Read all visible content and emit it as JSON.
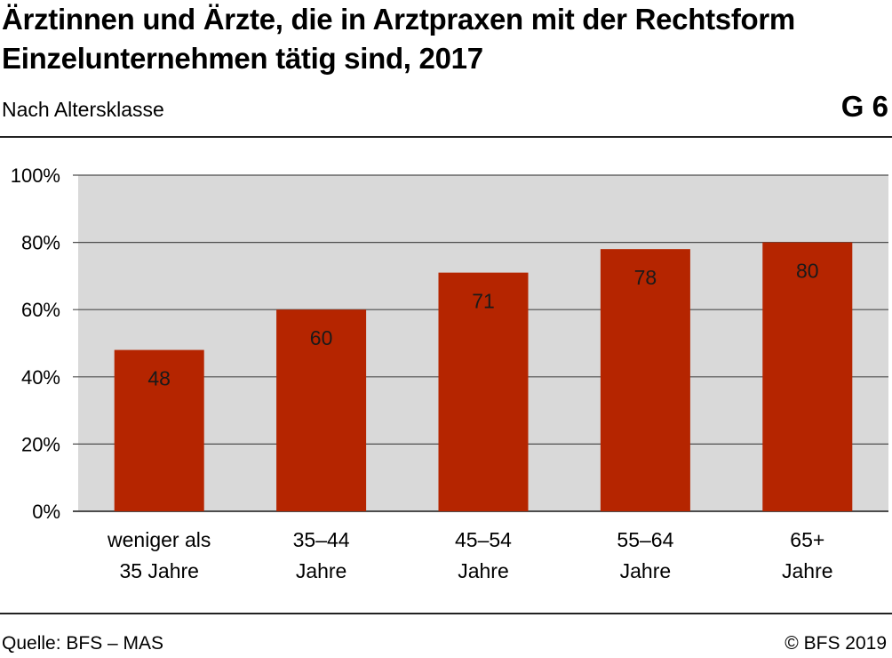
{
  "header": {
    "title": "Ärztinnen und Ärzte, die in Arztpraxen mit der Rechtsform Einzelunternehmen tätig sind, 2017",
    "subtitle": "Nach Altersklasse",
    "chart_id": "G 6"
  },
  "footer": {
    "source": "Quelle: BFS – MAS",
    "copyright": "© BFS 2019"
  },
  "colors": {
    "bar": "#b52500",
    "plot_background": "#d9d9d9",
    "grid": "#4d4d4d"
  },
  "chart_data": {
    "type": "bar",
    "title": "Ärztinnen und Ärzte, die in Arztpraxen mit der Rechtsform Einzelunternehmen tätig sind, 2017",
    "subtitle": "Nach Altersklasse",
    "categories": [
      [
        "weniger als",
        "35 Jahre"
      ],
      [
        "35–44",
        "Jahre"
      ],
      [
        "45–54",
        "Jahre"
      ],
      [
        "55–64",
        "Jahre"
      ],
      [
        "65+",
        "Jahre"
      ]
    ],
    "values": [
      48,
      60,
      71,
      78,
      80
    ],
    "data_labels": [
      "48",
      "60",
      "71",
      "78",
      "80"
    ],
    "ylim": [
      0,
      100
    ],
    "yticks": [
      0,
      20,
      40,
      60,
      80,
      100
    ],
    "ytick_labels": [
      "0%",
      "20%",
      "40%",
      "60%",
      "80%",
      "100%"
    ],
    "xlabel": "",
    "ylabel": "",
    "grid": true,
    "legend": "none"
  }
}
